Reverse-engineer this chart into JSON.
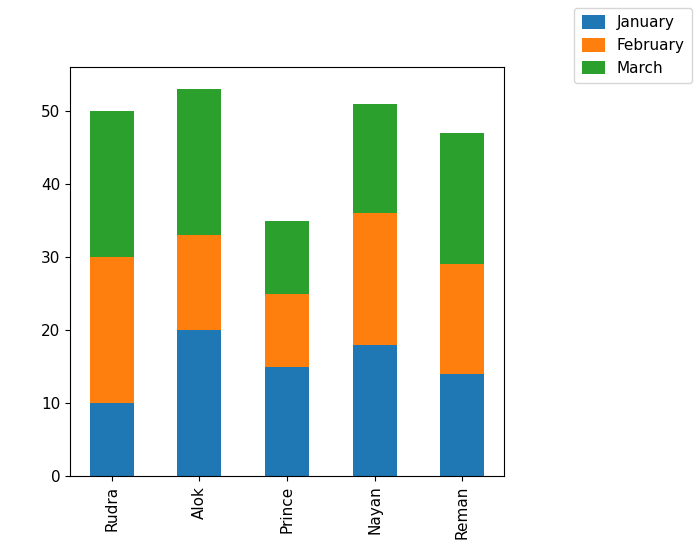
{
  "categories": [
    "Rudra",
    "Alok",
    "Prince",
    "Nayan",
    "Reman"
  ],
  "january": [
    10,
    20,
    15,
    18,
    14
  ],
  "february": [
    20,
    13,
    10,
    18,
    15
  ],
  "march": [
    20,
    20,
    10,
    15,
    18
  ],
  "colors": {
    "January": "#1f77b4",
    "February": "#ff7f0e",
    "March": "#2ca02c"
  },
  "legend_labels": [
    "January",
    "February",
    "March"
  ],
  "ylim": [
    0,
    56
  ],
  "figsize": [
    7.0,
    5.6
  ],
  "dpi": 100,
  "bar_width": 0.5
}
